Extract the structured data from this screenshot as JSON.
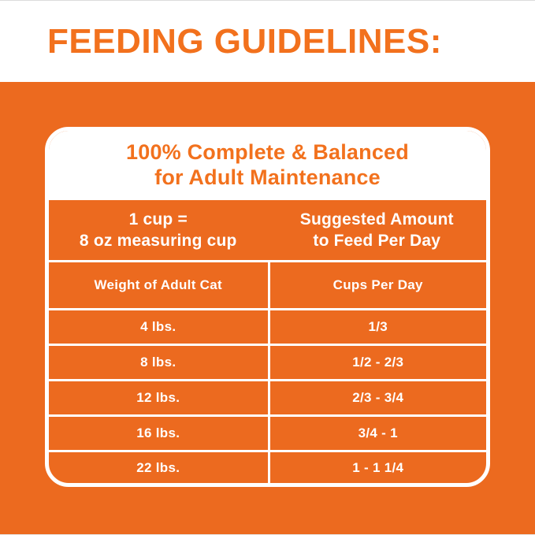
{
  "page_title": "FEEDING GUIDELINES:",
  "colors": {
    "orange_background": "#ec6a1f",
    "orange_text": "#f2711d",
    "table_text": "#ffffff",
    "grid_lines": "#ffffff"
  },
  "card": {
    "title_line1": "100% Complete & Balanced",
    "title_line2": "for Adult Maintenance",
    "header": {
      "left_line1": "1 cup =",
      "left_line2": "8 oz measuring cup",
      "right_line1": "Suggested Amount",
      "right_line2": "to Feed Per Day"
    },
    "columns": {
      "left": "Weight of Adult Cat",
      "right": "Cups Per Day"
    },
    "rows": [
      {
        "weight": "4 lbs.",
        "cups": "1/3"
      },
      {
        "weight": "8 lbs.",
        "cups": "1/2 - 2/3"
      },
      {
        "weight": "12 lbs.",
        "cups": "2/3 - 3/4"
      },
      {
        "weight": "16 lbs.",
        "cups": "3/4 - 1"
      },
      {
        "weight": "22 lbs.",
        "cups": "1 - 1 1/4"
      }
    ]
  }
}
